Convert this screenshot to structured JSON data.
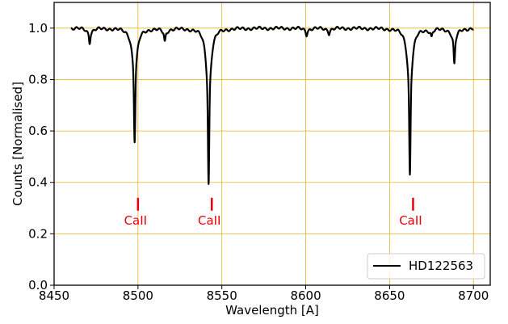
{
  "chart_data": {
    "type": "line",
    "title": "",
    "xlabel": "Wavelength [A]",
    "ylabel": "Counts [Normalised]",
    "xlim": [
      8450,
      8710
    ],
    "ylim": [
      0.0,
      1.1
    ],
    "x_ticks": [
      8450,
      8500,
      8550,
      8600,
      8650,
      8700
    ],
    "y_ticks": [
      0.0,
      0.2,
      0.4,
      0.6,
      0.8,
      1.0
    ],
    "x_tick_labels": [
      "8450",
      "8500",
      "8550",
      "8600",
      "8650",
      "8700"
    ],
    "y_tick_labels": [
      "0.0",
      "0.2",
      "0.4",
      "0.6",
      "0.8",
      "1.0"
    ],
    "grid": true,
    "grid_color": "#e8b422",
    "legend": {
      "placement": "bottom-right"
    },
    "series": [
      {
        "name": "HD122563",
        "color": "#000000",
        "x_range": [
          8460,
          8700
        ],
        "continuum": 1.0,
        "absorption_lines": [
          {
            "center": 8471.2,
            "depth": 0.055
          },
          {
            "center": 8498.0,
            "depth": 0.44
          },
          {
            "center": 8516.0,
            "depth": 0.05
          },
          {
            "center": 8542.1,
            "depth": 0.605
          },
          {
            "center": 8600.5,
            "depth": 0.025
          },
          {
            "center": 8613.9,
            "depth": 0.02
          },
          {
            "center": 8662.1,
            "depth": 0.57
          },
          {
            "center": 8675.0,
            "depth": 0.03
          },
          {
            "center": 8688.6,
            "depth": 0.14
          }
        ]
      }
    ],
    "annotations": [
      {
        "x": 8500,
        "text": "CaII",
        "color": "#e8000b"
      },
      {
        "x": 8544,
        "text": "CaII",
        "color": "#e8000b"
      },
      {
        "x": 8664,
        "text": "CaII",
        "color": "#e8000b"
      }
    ]
  }
}
